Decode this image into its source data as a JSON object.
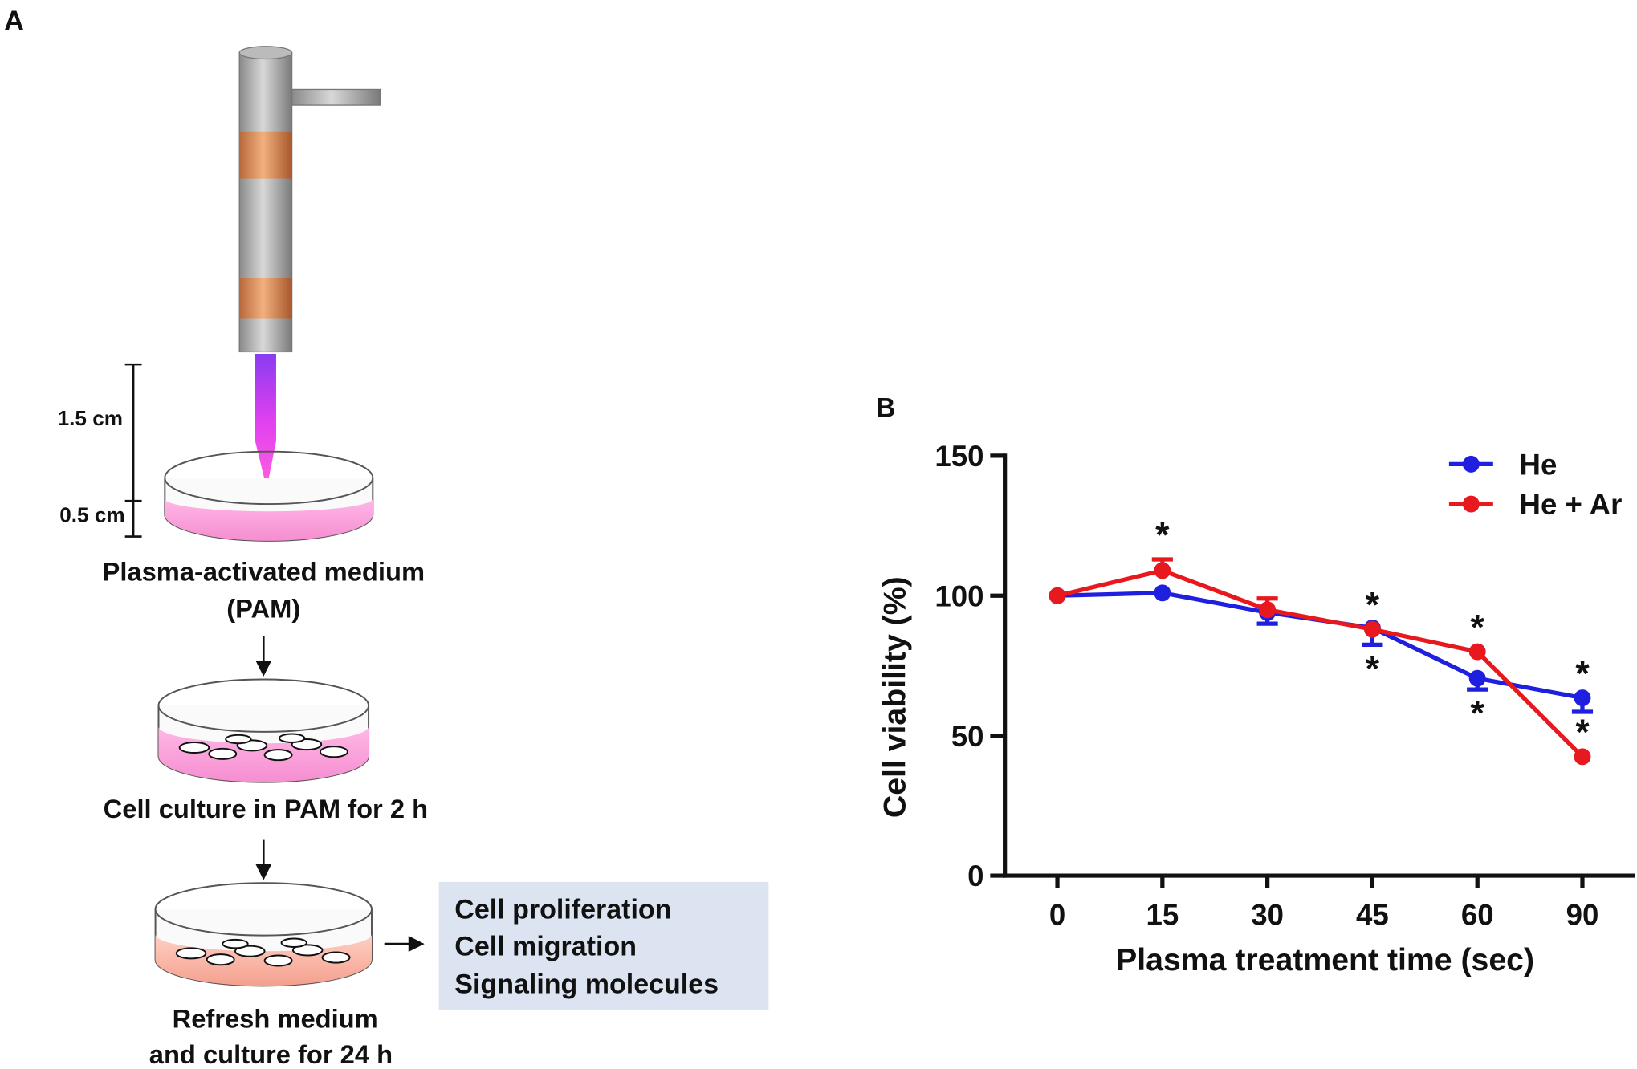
{
  "panel_a": {
    "label": "A",
    "gap_label": "1.5 cm",
    "depth_label": "0.5 cm",
    "steps": [
      [
        "Plasma-activated medium",
        "(PAM)"
      ],
      [
        "Cell culture in PAM for 2 h"
      ],
      [
        "Refresh medium",
        "and culture for 24 h"
      ]
    ],
    "outputs": [
      "Cell proliferation",
      "Cell migration",
      "Signaling molecules"
    ]
  },
  "panel_b": {
    "label": "B"
  },
  "chart_data": {
    "type": "line",
    "xlabel": "Plasma treatment time (sec)",
    "ylabel": "Cell viability (%)",
    "categories": [
      "0",
      "15",
      "30",
      "45",
      "60",
      "90"
    ],
    "ylim": [
      0,
      150
    ],
    "yticks": [
      0,
      50,
      100,
      150
    ],
    "legend": "top-right",
    "series": [
      {
        "name": "He",
        "color": "#1f1fe0",
        "values": [
          100,
          101,
          94,
          88.5,
          70.5,
          63.5
        ],
        "errors": [
          0,
          0,
          4,
          6,
          4,
          5
        ],
        "error_direction": "down",
        "significance": [
          null,
          null,
          null,
          "*",
          "*",
          "*"
        ]
      },
      {
        "name": "He + Ar",
        "color": "#e8191e",
        "values": [
          100,
          109,
          95,
          88,
          80,
          42.5
        ],
        "errors": [
          0,
          4,
          4,
          0,
          0,
          0
        ],
        "error_direction": "up",
        "significance": [
          null,
          "*",
          null,
          "*",
          "*",
          "*"
        ]
      }
    ]
  }
}
